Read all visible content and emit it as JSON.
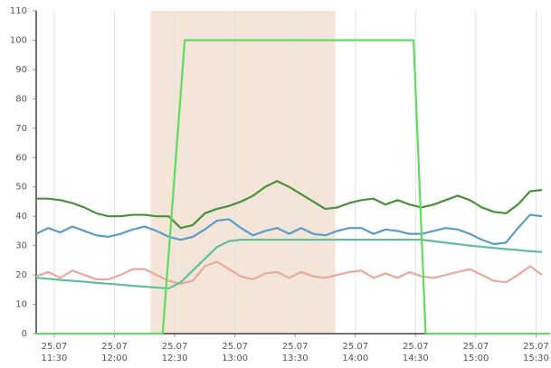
{
  "chart_data": {
    "type": "line",
    "xlim": [
      "11:21",
      "15:37"
    ],
    "ylim": [
      0,
      110
    ],
    "yticks": [
      0,
      10,
      20,
      30,
      40,
      50,
      60,
      70,
      80,
      90,
      100,
      110
    ],
    "xticks": [
      {
        "value": "11:30",
        "date": "25.07",
        "time": "11:30"
      },
      {
        "value": "12:00",
        "date": "25.07",
        "time": "12:00"
      },
      {
        "value": "12:30",
        "date": "25.07",
        "time": "12:30"
      },
      {
        "value": "13:00",
        "date": "25.07",
        "time": "13:00"
      },
      {
        "value": "13:30",
        "date": "25.07",
        "time": "13:30"
      },
      {
        "value": "14:00",
        "date": "25.07",
        "time": "14:00"
      },
      {
        "value": "14:30",
        "date": "25.07",
        "time": "14:30"
      },
      {
        "value": "15:00",
        "date": "25.07",
        "time": "15:00"
      },
      {
        "value": "15:30",
        "date": "25.07",
        "time": "15:30"
      }
    ],
    "grid": "x",
    "highlight": {
      "from": "12:18",
      "to": "13:50",
      "color": "#f3e6d8"
    },
    "x": [
      "11:21",
      "11:27",
      "11:33",
      "11:39",
      "11:45",
      "11:51",
      "11:57",
      "12:03",
      "12:09",
      "12:15",
      "12:21",
      "12:27",
      "12:33",
      "12:39",
      "12:45",
      "12:51",
      "12:57",
      "13:03",
      "13:09",
      "13:15",
      "13:21",
      "13:27",
      "13:33",
      "13:39",
      "13:45",
      "13:51",
      "13:57",
      "14:03",
      "14:09",
      "14:15",
      "14:21",
      "14:27",
      "14:33",
      "14:39",
      "14:45",
      "14:51",
      "14:57",
      "15:03",
      "15:09",
      "15:15",
      "15:21",
      "15:27",
      "15:33"
    ],
    "series": [
      {
        "color": "#4a8f3c",
        "values": [
          46,
          46,
          45.5,
          44.5,
          43,
          41,
          40,
          40,
          40.5,
          40.5,
          40,
          40,
          36,
          37,
          41,
          42.5,
          43.5,
          45,
          47,
          50,
          52,
          50,
          47.5,
          45,
          42.5,
          43,
          44.5,
          45.5,
          46,
          44,
          45.5,
          44,
          43,
          44,
          45.5,
          47,
          45.5,
          43,
          41.5,
          41,
          44,
          48.5,
          49
        ]
      },
      {
        "color": "#5b9bc8",
        "values": [
          34,
          36,
          34.5,
          36.5,
          35,
          33.5,
          33,
          34,
          35.5,
          36.5,
          35,
          33,
          32,
          33,
          35.5,
          38.5,
          39,
          36,
          33.5,
          35,
          36,
          34,
          36,
          34,
          33.5,
          35,
          36,
          36,
          34,
          35.5,
          35,
          34,
          34,
          35,
          36,
          35.5,
          34,
          32,
          30.5,
          31,
          36,
          40.5,
          40
        ]
      },
      {
        "color": "#eaa899",
        "values": [
          19.5,
          21,
          19,
          21.5,
          20,
          18.5,
          18.5,
          20,
          22,
          22,
          20,
          18,
          17,
          18,
          23,
          24.5,
          22,
          19.5,
          18.5,
          20.5,
          21,
          19,
          21,
          19.5,
          19,
          20,
          21,
          21.5,
          19,
          20.5,
          19,
          21,
          19.5,
          19,
          20,
          21,
          22,
          20,
          18,
          17.5,
          20,
          23,
          20
        ]
      },
      {
        "color": "#5fbf9a",
        "values": [
          19,
          18.7,
          18.3,
          18,
          17.7,
          17.3,
          17,
          16.7,
          16.3,
          16,
          15.7,
          15.4,
          17.5,
          21.5,
          25.5,
          29.5,
          31.5,
          32,
          32,
          32,
          32,
          32,
          32,
          32,
          32,
          32,
          32,
          32,
          32,
          32,
          32,
          32,
          32,
          31.5,
          31,
          30.5,
          30,
          29.6,
          29.2,
          28.8,
          28.5,
          28.1,
          27.8
        ]
      },
      {
        "color": "#5fdc5f",
        "x": [
          "11:21",
          "12:24",
          "12:35",
          "14:29",
          "14:35",
          "15:37"
        ],
        "values": [
          0,
          0,
          100,
          100,
          0,
          0
        ]
      }
    ]
  }
}
